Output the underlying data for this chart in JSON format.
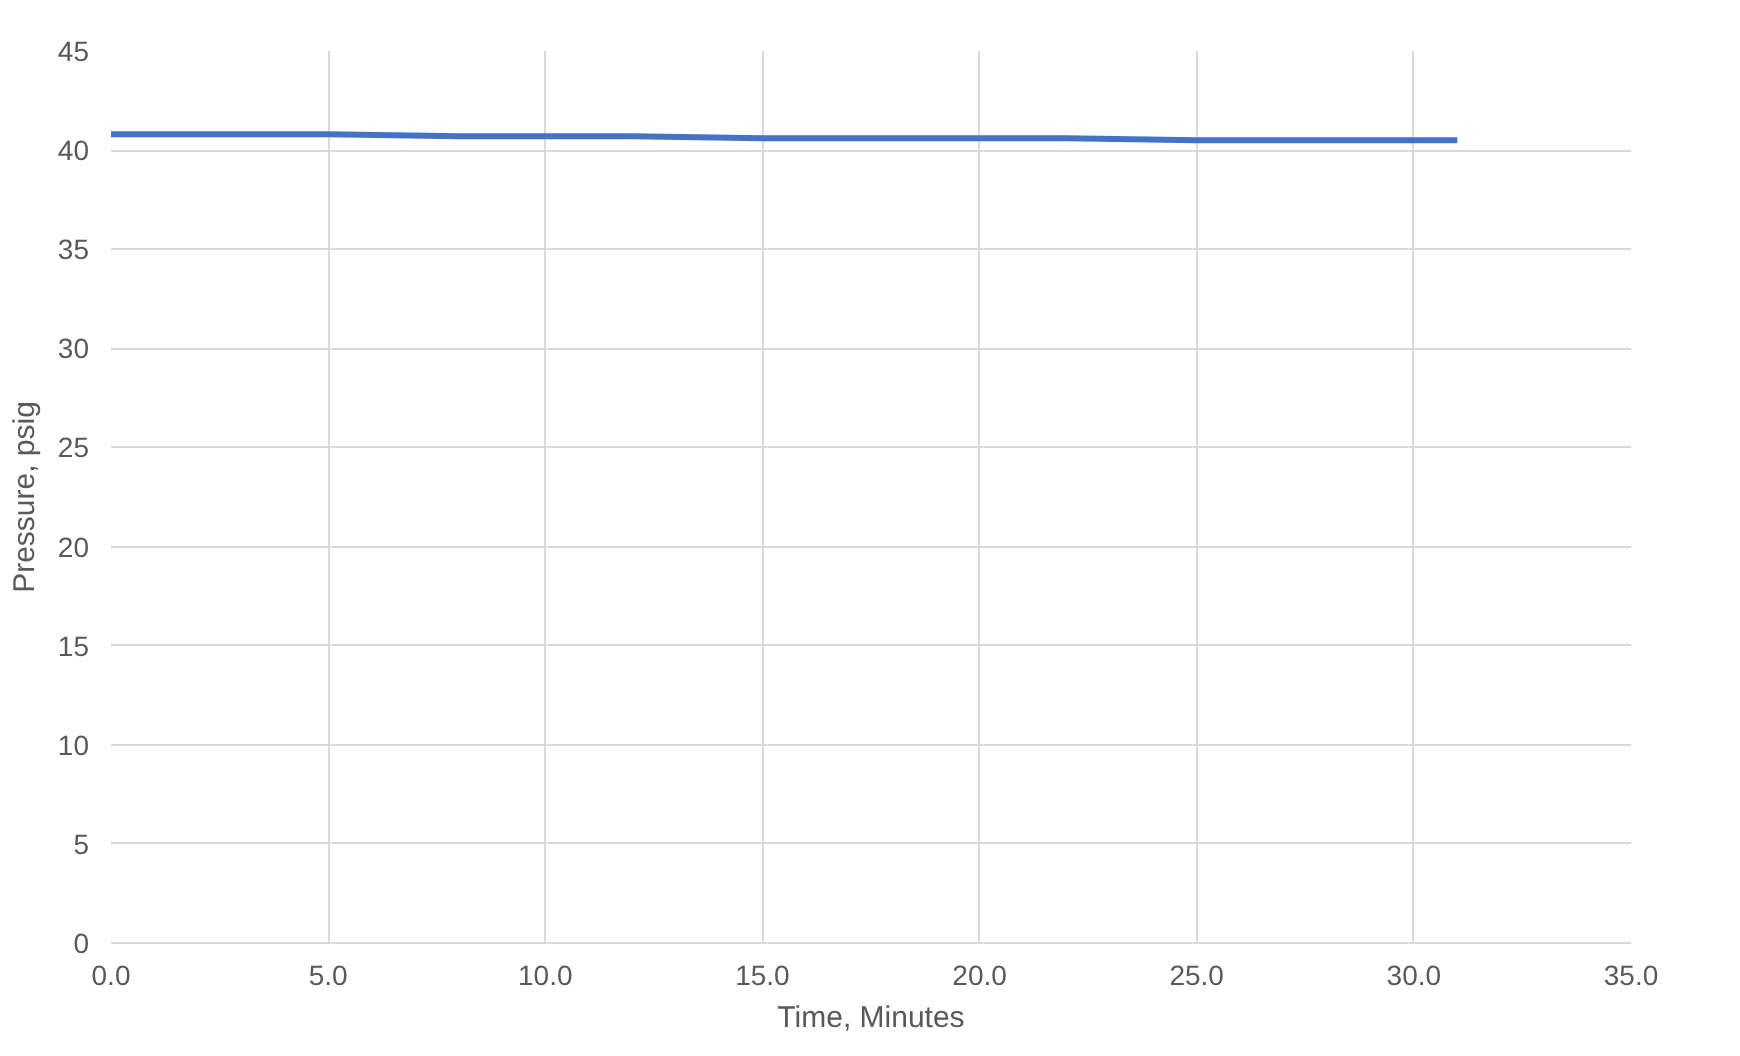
{
  "chart_data": {
    "type": "line",
    "xlabel": "Time, Minutes",
    "ylabel": "Pressure, psig",
    "x": [
      0,
      2,
      5,
      8,
      10,
      12,
      15,
      17,
      20,
      22,
      25,
      27,
      31
    ],
    "series": [
      {
        "color": "#4472c4",
        "values": [
          40.8,
          40.8,
          40.8,
          40.7,
          40.7,
          40.7,
          40.6,
          40.6,
          40.6,
          40.6,
          40.5,
          40.5,
          40.5
        ]
      }
    ],
    "xlim": [
      0,
      35
    ],
    "xticks": [
      {
        "value": 0,
        "label": "0.0"
      },
      {
        "value": 5,
        "label": "5.0"
      },
      {
        "value": 10,
        "label": "10.0"
      },
      {
        "value": 15,
        "label": "15.0"
      },
      {
        "value": 20,
        "label": "20.0"
      },
      {
        "value": 25,
        "label": "25.0"
      },
      {
        "value": 30,
        "label": "30.0"
      },
      {
        "value": 35,
        "label": "35.0"
      }
    ],
    "ylim": [
      0,
      45
    ],
    "yticks": [
      0,
      5,
      10,
      15,
      20,
      25,
      30,
      35,
      40,
      45
    ],
    "grid": true,
    "marker": "none",
    "line_style": "solid"
  }
}
